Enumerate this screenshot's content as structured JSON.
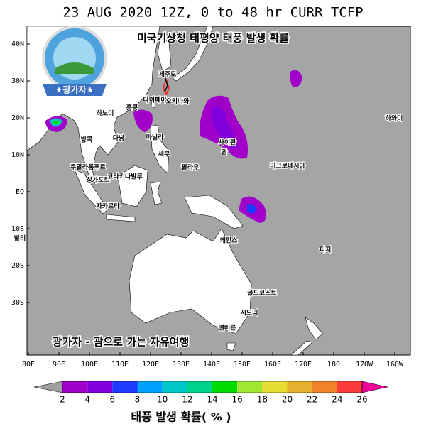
{
  "title": "23 AUG 2020 12Z,  0 to  48 hr CURR TCFP",
  "overlay_title": "미국기상청 태평양 태풍 발생 확률",
  "logo_label": "★광가자★",
  "watermark": "광가자 - 괌으로 가는 자유여행",
  "map": {
    "lat_labels": [
      "40N",
      "30N",
      "20N",
      "10N",
      "EQ",
      "10S",
      "20S",
      "30S"
    ],
    "lon_labels": [
      "80E",
      "90E",
      "100E",
      "110E",
      "120E",
      "130E",
      "140E",
      "150E",
      "160E",
      "170E",
      "180",
      "170W",
      "160W"
    ],
    "places": [
      {
        "name": "제주도"
      },
      {
        "name": "타이페이"
      },
      {
        "name": "오키나와"
      },
      {
        "name": "홍콩"
      },
      {
        "name": "하노이"
      },
      {
        "name": "다낭"
      },
      {
        "name": "방콕"
      },
      {
        "name": "마닐라"
      },
      {
        "name": "세부"
      },
      {
        "name": "팔라우"
      },
      {
        "name": "사이판"
      },
      {
        "name": "괌"
      },
      {
        "name": "하와이"
      },
      {
        "name": "미크로네시아"
      },
      {
        "name": "쿠알라룸푸르"
      },
      {
        "name": "싱가포르"
      },
      {
        "name": "코타키나발루"
      },
      {
        "name": "자카르타"
      },
      {
        "name": "발리"
      },
      {
        "name": "케언스"
      },
      {
        "name": "피지"
      },
      {
        "name": "골드코스트"
      },
      {
        "name": "시드니"
      },
      {
        "name": "멜버른"
      }
    ]
  },
  "colorbar": {
    "labels": [
      2,
      4,
      6,
      8,
      10,
      12,
      14,
      16,
      18,
      20,
      22,
      24,
      26
    ],
    "colors": [
      "#a000c8",
      "#8200dc",
      "#1e3cff",
      "#00a0ff",
      "#00c8c8",
      "#00d28c",
      "#00dc00",
      "#a0e632",
      "#e6dc32",
      "#e6af2d",
      "#f08228",
      "#fa3c3c"
    ],
    "low_color": "#a0a0a0",
    "high_color": "#f0009b",
    "title": "태풍 발생 확률( %  )"
  }
}
